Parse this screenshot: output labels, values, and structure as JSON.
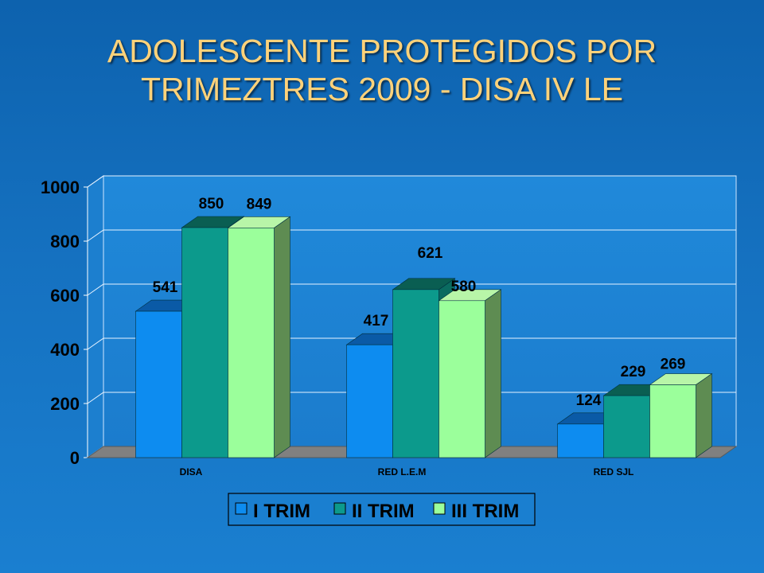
{
  "slide": {
    "title_line1": "ADOLESCENTE PROTEGIDOS POR",
    "title_line2": "TRIMEZTRES 2009 - DISA IV LE"
  },
  "chart_data": {
    "type": "bar",
    "style": "3d-clustered-column",
    "categories": [
      "DISA",
      "RED L.E.M",
      "RED SJL"
    ],
    "series": [
      {
        "name": "I TRIM",
        "values": [
          541,
          417,
          124
        ],
        "color": "#0d8cf0",
        "top_color": "#0a5aa6",
        "side_color": "#0a4f96"
      },
      {
        "name": "II TRIM",
        "values": [
          850,
          621,
          229
        ],
        "color": "#0c9a8c",
        "top_color": "#0a5e52",
        "side_color": "#0a6b60"
      },
      {
        "name": "III TRIM",
        "values": [
          849,
          580,
          269
        ],
        "color": "#9bff9b",
        "top_color": "#b8f5a8",
        "side_color": "#5e8c52"
      }
    ],
    "ylim": [
      0,
      1000
    ],
    "yticks": [
      0,
      200,
      400,
      600,
      800,
      1000
    ],
    "grid": true,
    "legend_position": "bottom",
    "plot_background": "#1e86d8",
    "floor_color": "#808080"
  }
}
